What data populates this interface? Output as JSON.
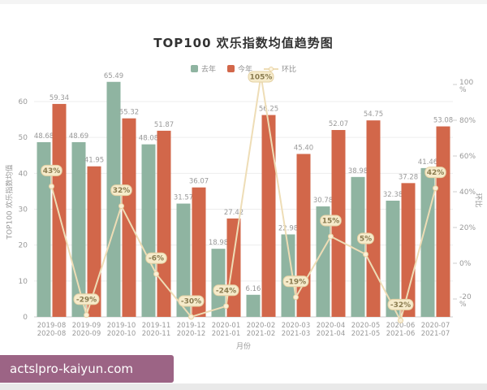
{
  "page": {
    "watermark": "actslpro-kaiyun.com"
  },
  "chart_data": {
    "type": "bar",
    "title": "TOP100 欢乐指数均值趋势图",
    "xlabel": "月份",
    "ylabel_left": "TOP100 欢乐指数均值",
    "ylabel_right": "环比",
    "grid": true,
    "legend_position": "top",
    "categories": [
      {
        "top": "2019-08",
        "bottom": "2020-08"
      },
      {
        "top": "2019-09",
        "bottom": "2020-09"
      },
      {
        "top": "2019-10",
        "bottom": "2020-10"
      },
      {
        "top": "2019-11",
        "bottom": "2020-11"
      },
      {
        "top": "2019-12",
        "bottom": "2020-12"
      },
      {
        "top": "2020-01",
        "bottom": "2021-01"
      },
      {
        "top": "2020-02",
        "bottom": "2021-02"
      },
      {
        "top": "2020-03",
        "bottom": "2021-03"
      },
      {
        "top": "2020-04",
        "bottom": "2021-04"
      },
      {
        "top": "2020-05",
        "bottom": "2021-05"
      },
      {
        "top": "2020-06",
        "bottom": "2021-06"
      },
      {
        "top": "2020-07",
        "bottom": "2021-07"
      }
    ],
    "series": [
      {
        "name": "去年",
        "type": "bar",
        "color": "#8fb4a1",
        "values": [
          48.68,
          48.69,
          65.49,
          48.08,
          31.57,
          18.98,
          6.16,
          22.98,
          30.78,
          38.98,
          32.38,
          41.46
        ]
      },
      {
        "name": "今年",
        "type": "bar",
        "color": "#d2674a",
        "values": [
          59.34,
          41.95,
          55.32,
          51.87,
          36.07,
          27.42,
          56.25,
          45.4,
          52.07,
          54.75,
          37.28,
          53.08
        ]
      },
      {
        "name": "环比",
        "type": "line",
        "axis": "right",
        "color": "#eeddb6",
        "values_pct": [
          43,
          -29,
          32,
          -6,
          -30,
          -24,
          105,
          -19,
          15,
          5,
          -32,
          42
        ],
        "labels": [
          "43%",
          "-29%",
          "32%",
          "-6%",
          "-30%",
          "-24%",
          "105%",
          "-19%",
          "15%",
          "5%",
          "-32%",
          "42%"
        ]
      }
    ],
    "left_axis": {
      "min": 0,
      "max": 60,
      "ticks": [
        0,
        10,
        20,
        30,
        40,
        50,
        60
      ]
    },
    "right_axis": {
      "ticks": [
        "100%",
        "80%",
        "60%",
        "40%",
        "20%",
        "0%",
        "-20%"
      ],
      "tick_values": [
        100,
        80,
        60,
        40,
        20,
        0,
        -20
      ]
    },
    "style": {
      "value_label_color": "#999999",
      "tick_label_color": "#999999",
      "pill_bg": "#f6ebcb",
      "pill_border": "#e4d1a3",
      "pill_text": "#8a7c50",
      "marker_fill": "#faf0d8",
      "marker_stroke": "#e8d3a4",
      "gridline_color": "#ededed",
      "axisline_color": "#cccccc"
    }
  }
}
